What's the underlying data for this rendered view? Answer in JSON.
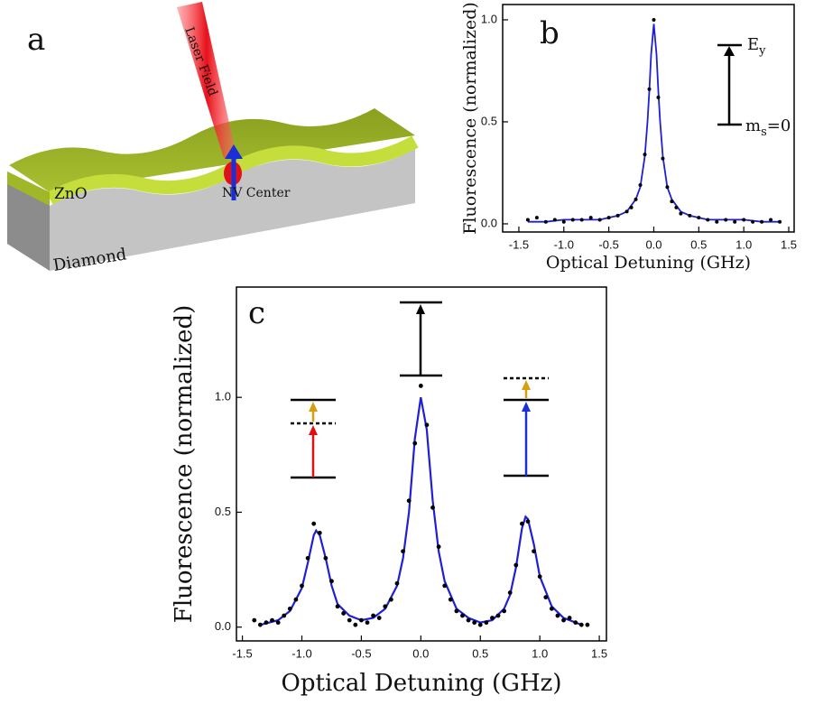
{
  "diagram": {
    "panel_label": "a",
    "laser": "Laser Field",
    "layer": "ZnO",
    "center": "NV Center",
    "substrate": "Diamond"
  },
  "chart_data": [
    {
      "type": "scatter",
      "panel_label": "b",
      "xlabel": "Optical Detuning (GHz)",
      "ylabel": "Fluorescence (normalized)",
      "xlim": [
        -1.68,
        1.56
      ],
      "ylim": [
        -0.04,
        1.075
      ],
      "xticks": [
        -1.5,
        {
          "value": -1.0,
          "label": "-1.0"
        },
        -0.5,
        {
          "value": 0,
          "label": "0.0"
        },
        0.5,
        {
          "value": 1.0,
          "label": "1.0"
        },
        1.5
      ],
      "yticks": [
        {
          "value": 0,
          "label": "0.0"
        },
        0.5,
        {
          "value": 1.0,
          "label": "1.0"
        }
      ],
      "points": {
        "color": "#000000",
        "x": [
          -1.4,
          -1.3,
          -1.2,
          -1.1,
          -1.0,
          -0.9,
          -0.8,
          -0.7,
          -0.6,
          -0.5,
          -0.4,
          -0.3,
          -0.25,
          -0.2,
          -0.15,
          -0.1,
          -0.05,
          0,
          0.05,
          0.1,
          0.15,
          0.2,
          0.25,
          0.3,
          0.4,
          0.5,
          0.6,
          0.7,
          0.8,
          0.9,
          1.0,
          1.1,
          1.2,
          1.3,
          1.4
        ],
        "y": [
          0.02,
          0.03,
          0.01,
          0.02,
          0.01,
          0.02,
          0.02,
          0.03,
          0.02,
          0.03,
          0.04,
          0.06,
          0.08,
          0.12,
          0.19,
          0.34,
          0.66,
          1.0,
          0.62,
          0.32,
          0.18,
          0.11,
          0.08,
          0.05,
          0.04,
          0.03,
          0.02,
          0.01,
          0.02,
          0.01,
          0.02,
          0.01,
          0.01,
          0.02,
          0.01
        ]
      },
      "fit": {
        "color": "#1f1fd6",
        "x": [
          -1.4,
          -1.2,
          -1,
          -0.8,
          -0.6,
          -0.4,
          -0.3,
          -0.2,
          -0.15,
          -0.1,
          -0.07,
          -0.05,
          -0.03,
          0,
          0.03,
          0.05,
          0.07,
          0.1,
          0.15,
          0.2,
          0.3,
          0.4,
          0.6,
          0.8,
          1,
          1.2,
          1.4
        ],
        "y": [
          0.01,
          0.01,
          0.02,
          0.02,
          0.02,
          0.04,
          0.06,
          0.12,
          0.18,
          0.33,
          0.5,
          0.65,
          0.83,
          0.98,
          0.83,
          0.65,
          0.5,
          0.33,
          0.18,
          0.12,
          0.06,
          0.04,
          0.02,
          0.02,
          0.02,
          0.01,
          0.01
        ]
      },
      "levels": {
        "upper": {
          "main": "E",
          "sub": "y"
        },
        "lower": {
          "main": "m",
          "sub": "s",
          "tail": "=0"
        }
      }
    },
    {
      "type": "scatter",
      "panel_label": "c",
      "xlabel": "Optical Detuning (GHz)",
      "ylabel": "Fluorescence (normalized)",
      "xlim": [
        -1.55,
        1.56
      ],
      "ylim": [
        -0.06,
        1.48
      ],
      "xticks": [
        -1.5,
        {
          "value": -1.0,
          "label": "-1.0"
        },
        -0.5,
        {
          "value": 0,
          "label": "0.0"
        },
        0.5,
        {
          "value": 1.0,
          "label": "1.0"
        },
        1.5
      ],
      "yticks": [
        {
          "value": 0,
          "label": "0.0"
        },
        0.5,
        {
          "value": 1.0,
          "label": "1.0"
        }
      ],
      "points": {
        "color": "#000000",
        "x": [
          -1.4,
          -1.35,
          -1.3,
          -1.25,
          -1.2,
          -1.15,
          -1.1,
          -1.05,
          -1.0,
          -0.95,
          -0.9,
          -0.85,
          -0.8,
          -0.75,
          -0.7,
          -0.65,
          -0.6,
          -0.55,
          -0.5,
          -0.45,
          -0.4,
          -0.35,
          -0.3,
          -0.25,
          -0.2,
          -0.15,
          -0.1,
          -0.05,
          0,
          0.05,
          0.1,
          0.15,
          0.2,
          0.25,
          0.3,
          0.35,
          0.4,
          0.45,
          0.5,
          0.55,
          0.6,
          0.65,
          0.7,
          0.75,
          0.8,
          0.85,
          0.9,
          0.95,
          1.0,
          1.05,
          1.1,
          1.15,
          1.2,
          1.25,
          1.3,
          1.35,
          1.4
        ],
        "y": [
          0.03,
          0.01,
          0.02,
          0.03,
          0.02,
          0.05,
          0.08,
          0.12,
          0.18,
          0.3,
          0.45,
          0.41,
          0.3,
          0.2,
          0.09,
          0.06,
          0.03,
          0.01,
          0.03,
          0.02,
          0.05,
          0.04,
          0.09,
          0.12,
          0.19,
          0.33,
          0.55,
          0.8,
          1.05,
          0.88,
          0.52,
          0.35,
          0.18,
          0.12,
          0.07,
          0.05,
          0.03,
          0.02,
          0.01,
          0.02,
          0.04,
          0.05,
          0.07,
          0.15,
          0.27,
          0.45,
          0.46,
          0.33,
          0.22,
          0.13,
          0.08,
          0.05,
          0.03,
          0.04,
          0.02,
          0.01,
          0.01
        ]
      },
      "fit": {
        "color": "#1f1fd6",
        "x": [
          -1.35,
          -1.2,
          -1.1,
          -1,
          -0.95,
          -0.9,
          -0.88,
          -0.85,
          -0.8,
          -0.75,
          -0.7,
          -0.6,
          -0.5,
          -0.4,
          -0.3,
          -0.2,
          -0.15,
          -0.1,
          -0.05,
          0,
          0.05,
          0.1,
          0.15,
          0.2,
          0.3,
          0.4,
          0.5,
          0.6,
          0.7,
          0.75,
          0.8,
          0.85,
          0.88,
          0.9,
          0.95,
          1,
          1.1,
          1.2,
          1.35
        ],
        "y": [
          0.01,
          0.03,
          0.07,
          0.17,
          0.28,
          0.4,
          0.42,
          0.4,
          0.3,
          0.18,
          0.1,
          0.05,
          0.03,
          0.04,
          0.08,
          0.18,
          0.3,
          0.5,
          0.82,
          1,
          0.86,
          0.55,
          0.33,
          0.2,
          0.08,
          0.04,
          0.02,
          0.03,
          0.08,
          0.14,
          0.26,
          0.43,
          0.48,
          0.47,
          0.36,
          0.22,
          0.09,
          0.04,
          0.01
        ]
      }
    }
  ]
}
